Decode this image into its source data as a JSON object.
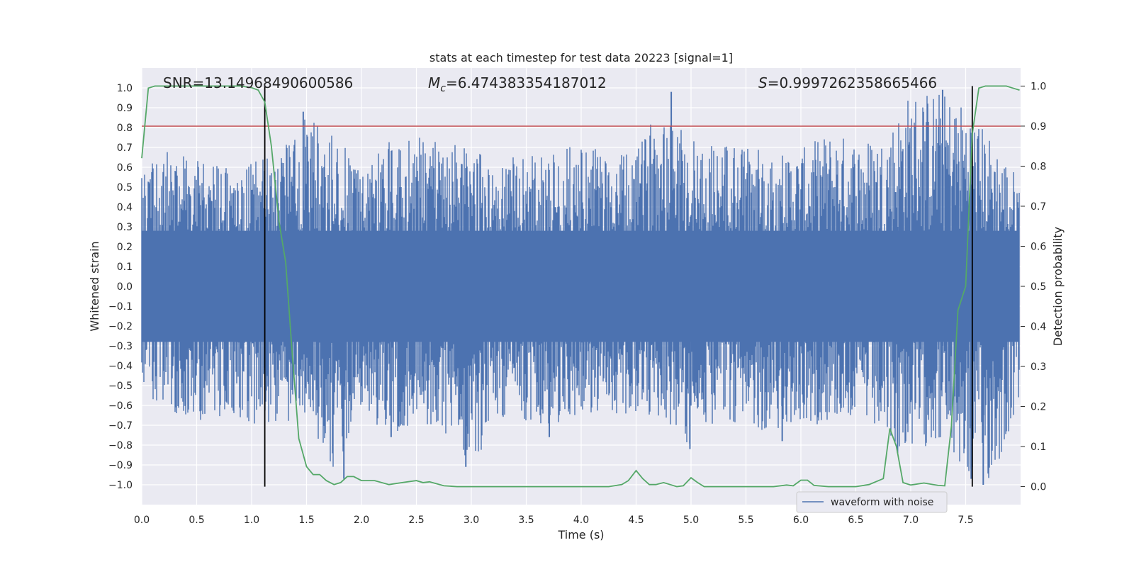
{
  "chart_data": {
    "type": "line",
    "title": "stats at each timestep for test data 20223 [signal=1]",
    "xlabel": "Time (s)",
    "ylabel": "Whitened strain",
    "y2label": "Detection probability",
    "xlim": [
      0.0,
      8.0
    ],
    "ylim": [
      -1.1,
      1.1
    ],
    "y2lim": [
      -0.045,
      1.045
    ],
    "xticks": [
      "0.0",
      "0.5",
      "1.0",
      "1.5",
      "2.0",
      "2.5",
      "3.0",
      "3.5",
      "4.0",
      "4.5",
      "5.0",
      "5.5",
      "6.0",
      "6.5",
      "7.0",
      "7.5"
    ],
    "xtick_values": [
      0.0,
      0.5,
      1.0,
      1.5,
      2.0,
      2.5,
      3.0,
      3.5,
      4.0,
      4.5,
      5.0,
      5.5,
      6.0,
      6.5,
      7.0,
      7.5
    ],
    "yticks": [
      "1.0",
      "0.9",
      "0.8",
      "0.7",
      "0.6",
      "0.5",
      "0.4",
      "0.3",
      "0.2",
      "0.1",
      "0.0",
      "−0.1",
      "−0.2",
      "−0.3",
      "−0.4",
      "−0.5",
      "−0.6",
      "−0.7",
      "−0.8",
      "−0.9",
      "−1.0"
    ],
    "ytick_values": [
      1.0,
      0.9,
      0.8,
      0.7,
      0.6,
      0.5,
      0.4,
      0.3,
      0.2,
      0.1,
      0.0,
      -0.1,
      -0.2,
      -0.3,
      -0.4,
      -0.5,
      -0.6,
      -0.7,
      -0.8,
      -0.9,
      -1.0
    ],
    "y2ticks": [
      "1.0",
      "0.9",
      "0.8",
      "0.7",
      "0.6",
      "0.5",
      "0.4",
      "0.3",
      "0.2",
      "0.1",
      "0.0"
    ],
    "y2tick_values": [
      1.0,
      0.9,
      0.8,
      0.7,
      0.6,
      0.5,
      0.4,
      0.3,
      0.2,
      0.1,
      0.0
    ],
    "grid": true,
    "legend": {
      "position": "lower-right",
      "entries": [
        "waveform with noise"
      ]
    },
    "annotations": {
      "snr": "SNR=13.14968490600586",
      "mc_symbol": "M",
      "mc_sub": "c",
      "mc_value": "=6.474383354187012",
      "s_symbol": "S",
      "s_value": "=0.9997262358665466"
    },
    "threshold": {
      "y2": 0.9,
      "color": "#c44e52"
    },
    "vlines": [
      1.12,
      7.56
    ],
    "series": [
      {
        "name": "waveform with noise",
        "color": "#4c72b0",
        "axis": "left",
        "envelope": {
          "x": [
            0.0,
            0.25,
            0.5,
            0.75,
            1.0,
            1.25,
            1.5,
            1.75,
            2.0,
            2.25,
            2.5,
            2.75,
            3.0,
            3.25,
            3.5,
            3.75,
            4.0,
            4.25,
            4.5,
            4.75,
            5.0,
            5.25,
            5.5,
            5.75,
            6.0,
            6.25,
            6.5,
            6.75,
            7.0,
            7.25,
            7.5,
            7.75,
            7.99
          ],
          "max": [
            0.6,
            0.7,
            0.66,
            0.6,
            0.64,
            0.66,
            0.88,
            0.76,
            0.63,
            0.74,
            0.76,
            0.73,
            0.7,
            0.63,
            0.67,
            0.67,
            0.73,
            0.66,
            0.67,
            0.98,
            0.76,
            0.74,
            0.72,
            0.68,
            0.69,
            0.78,
            0.75,
            0.76,
            0.99,
            0.99,
            0.93,
            0.74,
            0.55
          ],
          "min": [
            -0.62,
            -0.62,
            -0.7,
            -0.66,
            -0.7,
            -0.68,
            -0.72,
            -0.95,
            -0.66,
            -0.76,
            -0.68,
            -0.73,
            -0.91,
            -0.68,
            -0.68,
            -0.7,
            -0.66,
            -0.64,
            -0.68,
            -0.66,
            -0.82,
            -0.69,
            -0.7,
            -0.74,
            -0.73,
            -0.68,
            -0.66,
            -0.79,
            -0.84,
            -0.78,
            -0.98,
            -0.99,
            -0.58
          ]
        },
        "spikes": [
          {
            "x": 1.47,
            "y": 0.88
          },
          {
            "x": 1.84,
            "y": -0.97
          },
          {
            "x": 2.95,
            "y": -0.91
          },
          {
            "x": 4.82,
            "y": 0.98
          },
          {
            "x": 4.99,
            "y": -0.82
          },
          {
            "x": 6.88,
            "y": -0.84
          },
          {
            "x": 7.29,
            "y": 0.99
          },
          {
            "x": 7.55,
            "y": -0.97
          },
          {
            "x": 7.66,
            "y": -1.0
          },
          {
            "x": 2.27,
            "y": -0.76
          },
          {
            "x": 3.71,
            "y": -0.76
          },
          {
            "x": 5.83,
            "y": -0.78
          }
        ]
      },
      {
        "name": "",
        "color": "#55a868",
        "axis": "right",
        "x": [
          0.0,
          0.06,
          0.12,
          0.25,
          0.5,
          0.75,
          0.9,
          1.0,
          1.06,
          1.12,
          1.18,
          1.25,
          1.31,
          1.37,
          1.43,
          1.5,
          1.56,
          1.62,
          1.68,
          1.75,
          1.81,
          1.87,
          1.93,
          2.0,
          2.12,
          2.25,
          2.37,
          2.5,
          2.56,
          2.62,
          2.75,
          2.87,
          3.0,
          3.25,
          3.5,
          3.75,
          4.0,
          4.25,
          4.37,
          4.43,
          4.5,
          4.56,
          4.62,
          4.68,
          4.75,
          4.81,
          4.87,
          4.93,
          5.0,
          5.06,
          5.12,
          5.18,
          5.25,
          5.5,
          5.75,
          5.87,
          5.93,
          6.0,
          6.06,
          6.12,
          6.25,
          6.5,
          6.62,
          6.75,
          6.81,
          6.87,
          6.93,
          7.0,
          7.12,
          7.25,
          7.31,
          7.37,
          7.43,
          7.5,
          7.56,
          7.62,
          7.68,
          7.75,
          7.87,
          7.93,
          7.99
        ],
        "y": [
          0.82,
          0.995,
          1.0,
          1.0,
          1.0,
          1.0,
          1.0,
          0.996,
          0.99,
          0.96,
          0.85,
          0.66,
          0.56,
          0.33,
          0.12,
          0.05,
          0.03,
          0.03,
          0.015,
          0.005,
          0.01,
          0.025,
          0.025,
          0.015,
          0.015,
          0.005,
          0.01,
          0.015,
          0.01,
          0.012,
          0.002,
          0.0,
          0.0,
          0.0,
          0.0,
          0.0,
          0.0,
          0.0,
          0.005,
          0.015,
          0.04,
          0.02,
          0.005,
          0.005,
          0.01,
          0.005,
          0.0,
          0.002,
          0.022,
          0.01,
          0.0,
          0.0,
          0.0,
          0.0,
          0.0,
          0.004,
          0.002,
          0.016,
          0.016,
          0.003,
          0.0,
          0.0,
          0.005,
          0.02,
          0.145,
          0.1,
          0.01,
          0.004,
          0.009,
          0.003,
          0.002,
          0.15,
          0.44,
          0.5,
          0.88,
          0.995,
          1.0,
          1.0,
          1.0,
          0.995,
          0.99
        ]
      }
    ]
  }
}
